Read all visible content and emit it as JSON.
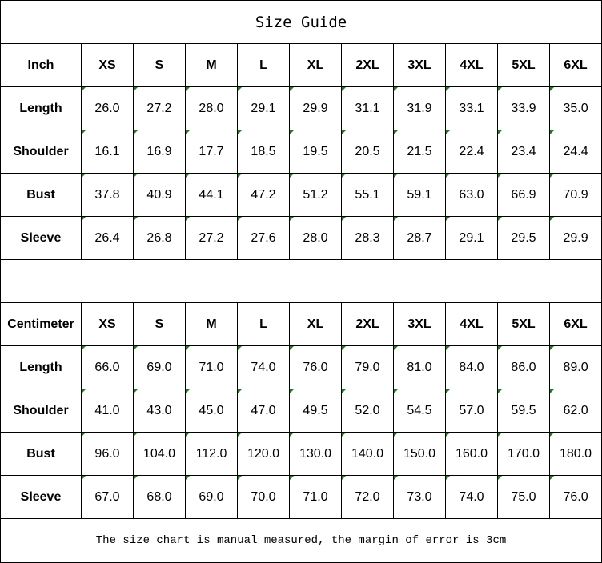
{
  "title": "Size Guide",
  "sizes": [
    "XS",
    "S",
    "M",
    "L",
    "XL",
    "2XL",
    "3XL",
    "4XL",
    "5XL",
    "6XL"
  ],
  "tables": [
    {
      "unit": "Inch",
      "rows": [
        {
          "label": "Length",
          "values": [
            "26.0",
            "27.2",
            "28.0",
            "29.1",
            "29.9",
            "31.1",
            "31.9",
            "33.1",
            "33.9",
            "35.0"
          ]
        },
        {
          "label": "Shoulder",
          "values": [
            "16.1",
            "16.9",
            "17.7",
            "18.5",
            "19.5",
            "20.5",
            "21.5",
            "22.4",
            "23.4",
            "24.4"
          ]
        },
        {
          "label": "Bust",
          "values": [
            "37.8",
            "40.9",
            "44.1",
            "47.2",
            "51.2",
            "55.1",
            "59.1",
            "63.0",
            "66.9",
            "70.9"
          ]
        },
        {
          "label": "Sleeve",
          "values": [
            "26.4",
            "26.8",
            "27.2",
            "27.6",
            "28.0",
            "28.3",
            "28.7",
            "29.1",
            "29.5",
            "29.9"
          ]
        }
      ]
    },
    {
      "unit": "Centimeter",
      "rows": [
        {
          "label": "Length",
          "values": [
            "66.0",
            "69.0",
            "71.0",
            "74.0",
            "76.0",
            "79.0",
            "81.0",
            "84.0",
            "86.0",
            "89.0"
          ]
        },
        {
          "label": "Shoulder",
          "values": [
            "41.0",
            "43.0",
            "45.0",
            "47.0",
            "49.5",
            "52.0",
            "54.5",
            "57.0",
            "59.5",
            "62.0"
          ]
        },
        {
          "label": "Bust",
          "values": [
            "96.0",
            "104.0",
            "112.0",
            "120.0",
            "130.0",
            "140.0",
            "150.0",
            "160.0",
            "170.0",
            "180.0"
          ]
        },
        {
          "label": "Sleeve",
          "values": [
            "67.0",
            "68.0",
            "69.0",
            "70.0",
            "71.0",
            "72.0",
            "73.0",
            "74.0",
            "75.0",
            "76.0"
          ]
        }
      ]
    }
  ],
  "footer": "The size chart is manual measured, the margin of error is 3cm",
  "colors": {
    "border": "#000000",
    "cell_marker": "#1a7f1a"
  }
}
